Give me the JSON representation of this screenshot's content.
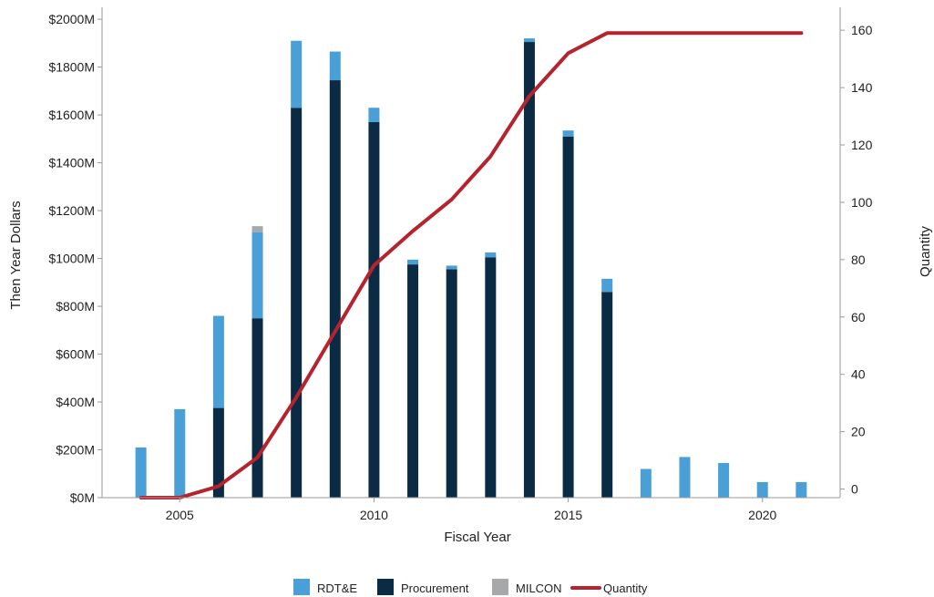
{
  "chart_data": {
    "type": "bar",
    "stacked": true,
    "x_axis": {
      "label": "Fiscal Year",
      "range": [
        2003,
        2022
      ],
      "ticks": [
        2005,
        2010,
        2015,
        2020
      ]
    },
    "y_axis_left": {
      "label": "Then Year Dollars",
      "range": [
        0,
        2050
      ],
      "ticks": [
        0,
        200,
        400,
        600,
        800,
        1000,
        1200,
        1400,
        1600,
        1800,
        2000
      ],
      "tick_labels": [
        "$0M",
        "$200M",
        "$400M",
        "$600M",
        "$800M",
        "$1000M",
        "$1200M",
        "$1400M",
        "$1600M",
        "$1800M",
        "$2000M"
      ]
    },
    "y_axis_right": {
      "label": "Quantity",
      "range": [
        -3,
        168
      ],
      "ticks": [
        0,
        20,
        40,
        60,
        80,
        100,
        120,
        140,
        160
      ],
      "tick_labels": [
        "0",
        "20",
        "40",
        "60",
        "80",
        "100",
        "120",
        "140",
        "160"
      ]
    },
    "x": [
      2004,
      2005,
      2006,
      2007,
      2008,
      2009,
      2010,
      2011,
      2012,
      2013,
      2014,
      2015,
      2016,
      2017,
      2018,
      2019,
      2020,
      2021
    ],
    "series": [
      {
        "name": "Procurement",
        "color": "#0b2a44",
        "axis": "left",
        "kind": "bar",
        "values": [
          0,
          0,
          375,
          750,
          1630,
          1745,
          1570,
          975,
          955,
          1005,
          1905,
          1510,
          860,
          0,
          0,
          0,
          0,
          0
        ]
      },
      {
        "name": "RDT&E",
        "color": "#4a9fd6",
        "axis": "left",
        "kind": "bar",
        "values": [
          210,
          370,
          385,
          360,
          280,
          120,
          60,
          20,
          15,
          20,
          15,
          25,
          55,
          120,
          170,
          145,
          65,
          65
        ]
      },
      {
        "name": "MILCON",
        "color": "#a6a8aa",
        "axis": "left",
        "kind": "bar",
        "values": [
          0,
          0,
          0,
          25,
          0,
          0,
          0,
          0,
          0,
          0,
          0,
          0,
          0,
          0,
          0,
          0,
          0,
          0
        ]
      },
      {
        "name": "Quantity",
        "color": "#b5242e",
        "axis": "right",
        "kind": "line",
        "values": [
          -3,
          -3,
          1,
          11,
          32,
          55,
          78,
          90,
          101,
          116,
          137,
          152,
          159,
          159,
          159,
          159,
          159,
          159
        ]
      }
    ],
    "legend": {
      "position": "bottom",
      "entries": [
        "RDT&E",
        "Procurement",
        "MILCON",
        "Quantity"
      ]
    },
    "grid": false
  }
}
